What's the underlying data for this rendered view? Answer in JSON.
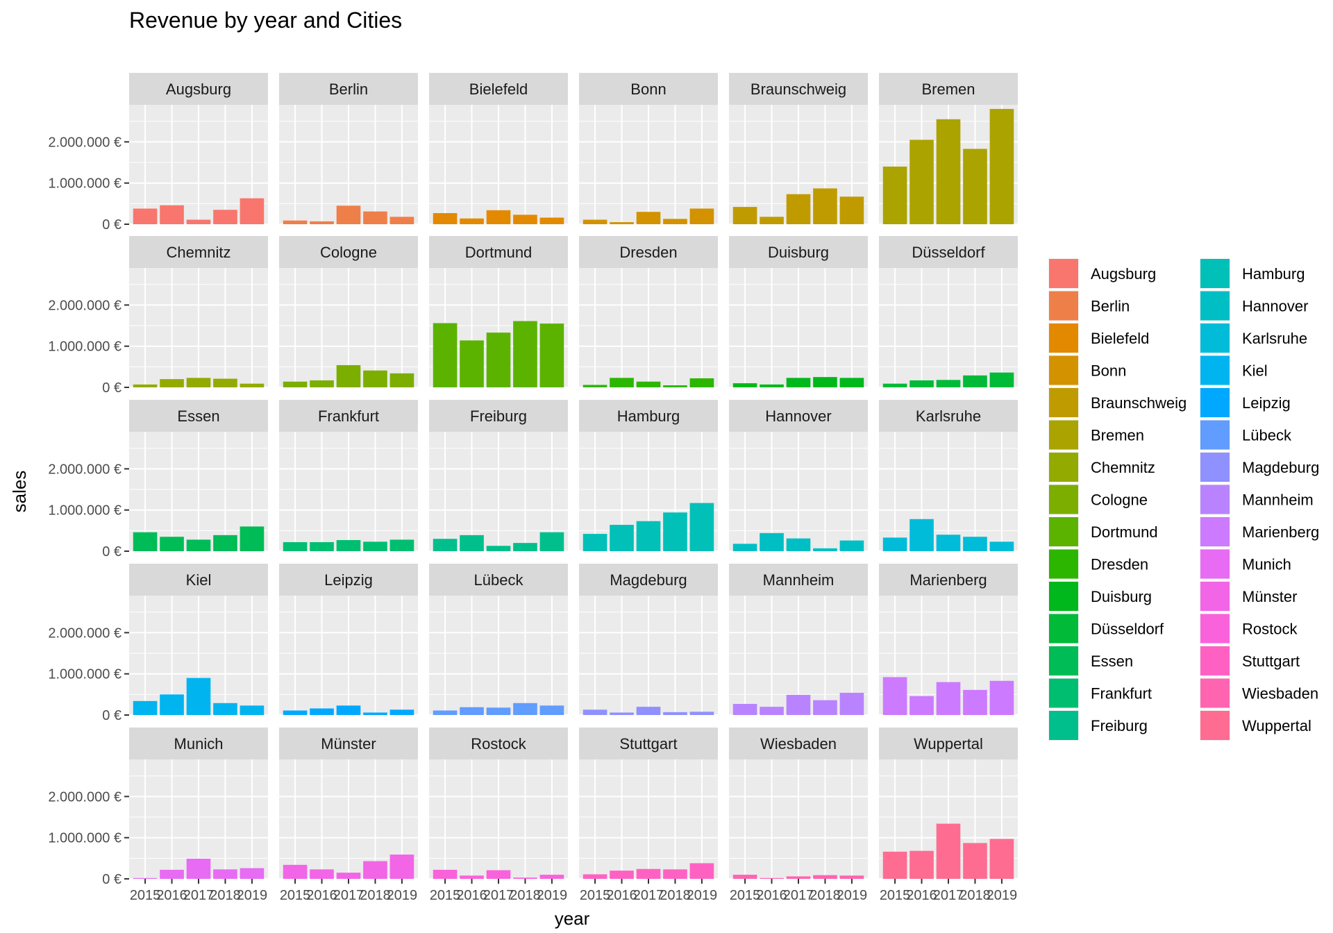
{
  "chart_data": {
    "type": "bar",
    "title": "Revenue by year and Cities",
    "xlabel": "year",
    "ylabel": "sales",
    "facet_by": "city",
    "facet_columns": 6,
    "legend_placement": "right",
    "grid": true,
    "ylim": [
      0,
      2900000
    ],
    "y_ticks": [
      0,
      1000000,
      2000000
    ],
    "y_tick_labels": [
      "0 €",
      "1.000.000 €",
      "2.000.000 €"
    ],
    "categories": [
      "2015",
      "2016",
      "2017",
      "2018",
      "2019"
    ],
    "series": [
      {
        "name": "Augsburg",
        "color": "#F8766D",
        "values": [
          380000,
          460000,
          110000,
          350000,
          630000
        ]
      },
      {
        "name": "Berlin",
        "color": "#EF7F49",
        "values": [
          90000,
          70000,
          450000,
          310000,
          180000
        ]
      },
      {
        "name": "Bielefeld",
        "color": "#E38900",
        "values": [
          270000,
          140000,
          340000,
          230000,
          160000
        ]
      },
      {
        "name": "Bonn",
        "color": "#D39200",
        "values": [
          110000,
          50000,
          300000,
          130000,
          380000
        ]
      },
      {
        "name": "Braunschweig",
        "color": "#C09B00",
        "values": [
          420000,
          180000,
          730000,
          870000,
          670000
        ]
      },
      {
        "name": "Bremen",
        "color": "#ABA300",
        "values": [
          1400000,
          2050000,
          2550000,
          1830000,
          2800000
        ]
      },
      {
        "name": "Chemnitz",
        "color": "#93AA00",
        "values": [
          70000,
          200000,
          230000,
          210000,
          90000
        ]
      },
      {
        "name": "Cologne",
        "color": "#7CAE00",
        "values": [
          140000,
          170000,
          540000,
          410000,
          340000
        ]
      },
      {
        "name": "Dortmund",
        "color": "#5BB300",
        "values": [
          1560000,
          1140000,
          1330000,
          1610000,
          1550000
        ]
      },
      {
        "name": "Dresden",
        "color": "#2DB600",
        "values": [
          60000,
          230000,
          140000,
          50000,
          220000
        ]
      },
      {
        "name": "Duisburg",
        "color": "#00B81B",
        "values": [
          100000,
          70000,
          230000,
          250000,
          230000
        ]
      },
      {
        "name": "Düsseldorf",
        "color": "#00BA38",
        "values": [
          90000,
          170000,
          180000,
          290000,
          360000
        ]
      },
      {
        "name": "Essen",
        "color": "#00BC56",
        "values": [
          460000,
          350000,
          280000,
          390000,
          600000
        ]
      },
      {
        "name": "Frankfurt",
        "color": "#00BE70",
        "values": [
          220000,
          220000,
          270000,
          230000,
          280000
        ]
      },
      {
        "name": "Freiburg",
        "color": "#00BF8C",
        "values": [
          300000,
          390000,
          130000,
          200000,
          460000
        ]
      },
      {
        "name": "Hamburg",
        "color": "#00C0B8",
        "values": [
          420000,
          640000,
          730000,
          940000,
          1170000
        ]
      },
      {
        "name": "Hannover",
        "color": "#00BFC4",
        "values": [
          180000,
          440000,
          310000,
          70000,
          260000
        ]
      },
      {
        "name": "Karlsruhe",
        "color": "#00BCD8",
        "values": [
          330000,
          780000,
          400000,
          350000,
          230000
        ]
      },
      {
        "name": "Kiel",
        "color": "#00B4F0",
        "values": [
          340000,
          500000,
          900000,
          290000,
          230000
        ]
      },
      {
        "name": "Leipzig",
        "color": "#00A9FF",
        "values": [
          110000,
          160000,
          230000,
          60000,
          130000
        ]
      },
      {
        "name": "Lübeck",
        "color": "#619CFF",
        "values": [
          110000,
          190000,
          180000,
          290000,
          230000
        ]
      },
      {
        "name": "Magdeburg",
        "color": "#8F91FF",
        "values": [
          130000,
          60000,
          200000,
          70000,
          80000
        ]
      },
      {
        "name": "Mannheim",
        "color": "#B983FF",
        "values": [
          270000,
          200000,
          490000,
          360000,
          540000
        ]
      },
      {
        "name": "Marienberg",
        "color": "#CC7AFF",
        "values": [
          920000,
          460000,
          800000,
          610000,
          830000
        ]
      },
      {
        "name": "Munich",
        "color": "#E76BF3",
        "values": [
          20000,
          220000,
          490000,
          230000,
          260000
        ]
      },
      {
        "name": "Münster",
        "color": "#F265E6",
        "values": [
          340000,
          230000,
          150000,
          430000,
          590000
        ]
      },
      {
        "name": "Rostock",
        "color": "#FA62DB",
        "values": [
          220000,
          80000,
          210000,
          30000,
          100000
        ]
      },
      {
        "name": "Stuttgart",
        "color": "#FF61C3",
        "values": [
          110000,
          200000,
          240000,
          230000,
          380000
        ]
      },
      {
        "name": "Wiesbaden",
        "color": "#FF64B0",
        "values": [
          100000,
          20000,
          60000,
          90000,
          80000
        ]
      },
      {
        "name": "Wuppertal",
        "color": "#FF6C91",
        "values": [
          660000,
          680000,
          1340000,
          870000,
          970000
        ]
      }
    ]
  }
}
